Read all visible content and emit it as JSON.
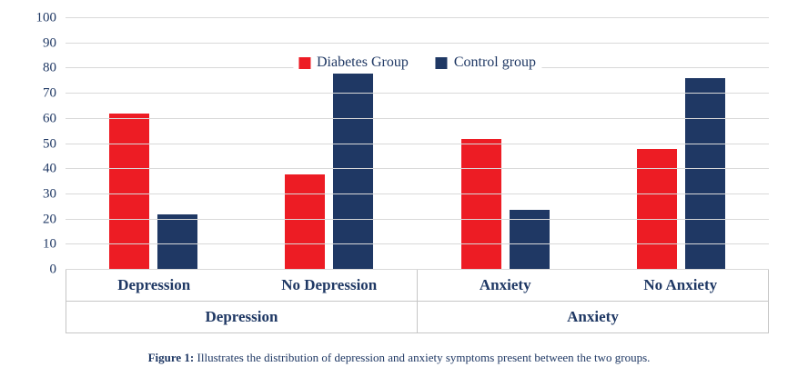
{
  "chart_data": {
    "type": "bar",
    "title": "",
    "categories": [
      "Depression",
      "No Depression",
      "Anxiety",
      "No Anxiety"
    ],
    "category_groups": [
      {
        "label": "Depression",
        "span": 2
      },
      {
        "label": "Anxiety",
        "span": 2
      }
    ],
    "series": [
      {
        "name": "Diabetes Group",
        "color": "#ED1C24",
        "values": [
          62,
          38,
          52,
          48
        ]
      },
      {
        "name": "Control group",
        "color": "#1F3864",
        "values": [
          22,
          78,
          24,
          76
        ]
      }
    ],
    "ylim": [
      0,
      100
    ],
    "ytick_step": 10,
    "grid": true,
    "legend_position": "top-center",
    "xlabel": "",
    "ylabel": ""
  },
  "caption": {
    "prefix": "Figure 1:",
    "text": "Illustrates the distribution of depression and anxiety symptoms present between the two groups."
  }
}
